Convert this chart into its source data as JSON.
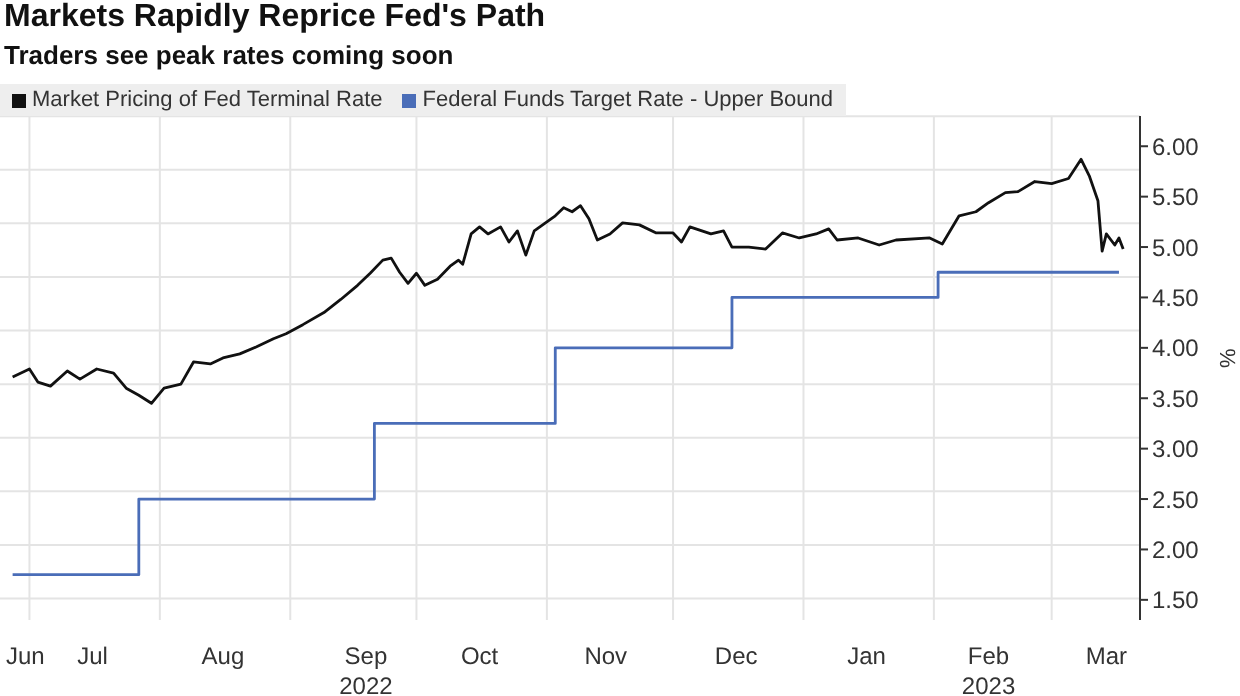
{
  "chart_data": {
    "type": "line",
    "title": "Markets Rapidly Reprice Fed's Path",
    "subtitle": "Traders see peak rates coming soon",
    "ylabel": "%",
    "series": [
      {
        "name": "Market Pricing of Fed Terminal Rate",
        "color": "#111111",
        "x": [
          "2022-06-27",
          "2022-07-01",
          "2022-07-03",
          "2022-07-06",
          "2022-07-10",
          "2022-07-13",
          "2022-07-17",
          "2022-07-21",
          "2022-07-24",
          "2022-07-27",
          "2022-07-30",
          "2022-08-02",
          "2022-08-06",
          "2022-08-09",
          "2022-08-13",
          "2022-08-16",
          "2022-08-20",
          "2022-08-24",
          "2022-08-28",
          "2022-08-31",
          "2022-09-04",
          "2022-09-09",
          "2022-09-13",
          "2022-09-17",
          "2022-09-20",
          "2022-09-23",
          "2022-09-25",
          "2022-09-27",
          "2022-09-29",
          "2022-10-01",
          "2022-10-03",
          "2022-10-06",
          "2022-10-09",
          "2022-10-11",
          "2022-10-12",
          "2022-10-14",
          "2022-10-16",
          "2022-10-18",
          "2022-10-21",
          "2022-10-23",
          "2022-10-25",
          "2022-10-27",
          "2022-10-29",
          "2022-11-03",
          "2022-11-05",
          "2022-11-07",
          "2022-11-09",
          "2022-11-11",
          "2022-11-13",
          "2022-11-16",
          "2022-11-19",
          "2022-11-23",
          "2022-11-27",
          "2022-12-01",
          "2022-12-03",
          "2022-12-05",
          "2022-12-10",
          "2022-12-13",
          "2022-12-15",
          "2022-12-19",
          "2022-12-23",
          "2022-12-27",
          "2022-12-31",
          "2023-01-04",
          "2023-01-07",
          "2023-01-09",
          "2023-01-14",
          "2023-01-19",
          "2023-01-23",
          "2023-01-31",
          "2023-02-03",
          "2023-02-07",
          "2023-02-11",
          "2023-02-14",
          "2023-02-18",
          "2023-02-21",
          "2023-02-25",
          "2023-03-01",
          "2023-03-05",
          "2023-03-08",
          "2023-03-10",
          "2023-03-12",
          "2023-03-13",
          "2023-03-14",
          "2023-03-16",
          "2023-03-17",
          "2023-03-18"
        ],
        "values": [
          3.71,
          3.79,
          3.66,
          3.62,
          3.77,
          3.69,
          3.79,
          3.75,
          3.6,
          3.53,
          3.45,
          3.6,
          3.64,
          3.86,
          3.84,
          3.9,
          3.94,
          4.01,
          4.09,
          4.14,
          4.23,
          4.35,
          4.48,
          4.62,
          4.74,
          4.87,
          4.89,
          4.75,
          4.64,
          4.74,
          4.62,
          4.68,
          4.81,
          4.87,
          4.83,
          5.13,
          5.2,
          5.13,
          5.2,
          5.05,
          5.16,
          4.92,
          5.16,
          5.31,
          5.39,
          5.35,
          5.41,
          5.28,
          5.07,
          5.13,
          5.24,
          5.22,
          5.14,
          5.14,
          5.05,
          5.2,
          5.13,
          5.16,
          5.0,
          5.0,
          4.98,
          5.14,
          5.09,
          5.13,
          5.18,
          5.07,
          5.09,
          5.02,
          5.07,
          5.09,
          5.03,
          5.31,
          5.35,
          5.44,
          5.54,
          5.55,
          5.65,
          5.63,
          5.68,
          5.87,
          5.7,
          5.46,
          4.96,
          5.13,
          5.02,
          5.09,
          4.98
        ]
      },
      {
        "name": "Federal Funds Target Rate - Upper Bound",
        "color": "#4a6db8",
        "type": "step",
        "x": [
          "2022-06-27",
          "2022-07-27",
          "2022-09-21",
          "2022-11-03",
          "2022-12-15",
          "2023-02-02",
          "2023-03-17"
        ],
        "values": [
          1.75,
          2.5,
          3.25,
          4.0,
          4.5,
          4.75,
          4.75
        ]
      }
    ],
    "xlim": [
      "2022-06-24",
      "2023-03-22"
    ],
    "xticks": [
      {
        "value": "2022-06-30",
        "label": "Jun"
      },
      {
        "value": "2022-07-01",
        "label": null
      },
      {
        "value": "2022-07-16",
        "label": "Jul"
      },
      {
        "value": "2022-08-01",
        "label": null
      },
      {
        "value": "2022-08-16",
        "label": "Aug"
      },
      {
        "value": "2022-09-01",
        "label": null
      },
      {
        "value": "2022-09-19",
        "label": "Sep\n2022"
      },
      {
        "value": "2022-10-01",
        "label": null
      },
      {
        "value": "2022-10-16",
        "label": "Oct"
      },
      {
        "value": "2022-11-01",
        "label": null
      },
      {
        "value": "2022-11-15",
        "label": "Nov"
      },
      {
        "value": "2022-12-01",
        "label": null
      },
      {
        "value": "2022-12-16",
        "label": "Dec"
      },
      {
        "value": "2023-01-01",
        "label": null
      },
      {
        "value": "2023-01-16",
        "label": "Jan"
      },
      {
        "value": "2023-02-01",
        "label": null
      },
      {
        "value": "2023-02-14",
        "label": "Feb\n2023"
      },
      {
        "value": "2023-03-01",
        "label": null
      },
      {
        "value": "2023-03-14",
        "label": "Mar"
      }
    ],
    "ylim": [
      1.3,
      6.3
    ],
    "yticks": [
      {
        "value": 1.5,
        "label": "1.50"
      },
      {
        "value": 2,
        "label": "2.00"
      },
      {
        "value": 2.5,
        "label": "2.50"
      },
      {
        "value": 3,
        "label": "3.00"
      },
      {
        "value": 3.5,
        "label": "3.50"
      },
      {
        "value": 4,
        "label": "4.00"
      },
      {
        "value": 4.5,
        "label": "4.50"
      },
      {
        "value": 5,
        "label": "5.00"
      },
      {
        "value": 5.5,
        "label": "5.50"
      },
      {
        "value": 6,
        "label": "6.00"
      }
    ],
    "grid": true,
    "legend": "top left",
    "marker": "none",
    "line_style": "solid"
  }
}
